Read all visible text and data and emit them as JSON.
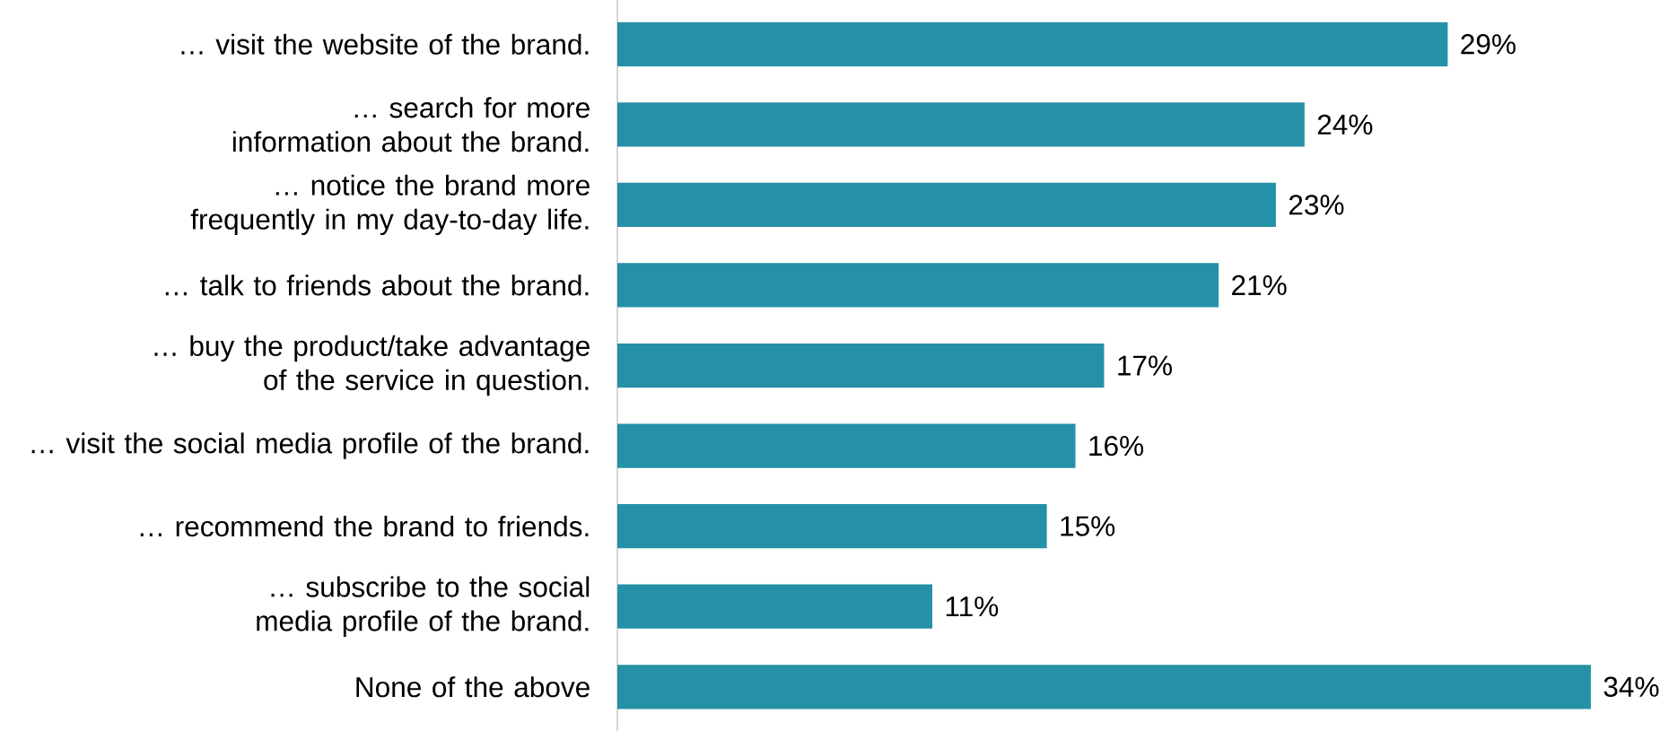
{
  "chart_data": {
    "type": "bar",
    "orientation": "horizontal",
    "categories": [
      "… visit the website of the brand.",
      "… search for more information about the brand.",
      "… notice the brand more frequently in my day-to-day life.",
      "… talk to friends about the brand.",
      "… buy the product/take advantage of the service in question.",
      "… visit the social media profile of the brand.",
      "… recommend the brand to friends.",
      "… subscribe to the social media profile of the brand.",
      "None of the above"
    ],
    "values": [
      29,
      24,
      23,
      21,
      17,
      16,
      15,
      11,
      34
    ],
    "value_labels": [
      "29%",
      "24%",
      "23%",
      "21%",
      "17%",
      "16%",
      "15%",
      "11%",
      "34%"
    ],
    "color": "#2491a6"
  }
}
